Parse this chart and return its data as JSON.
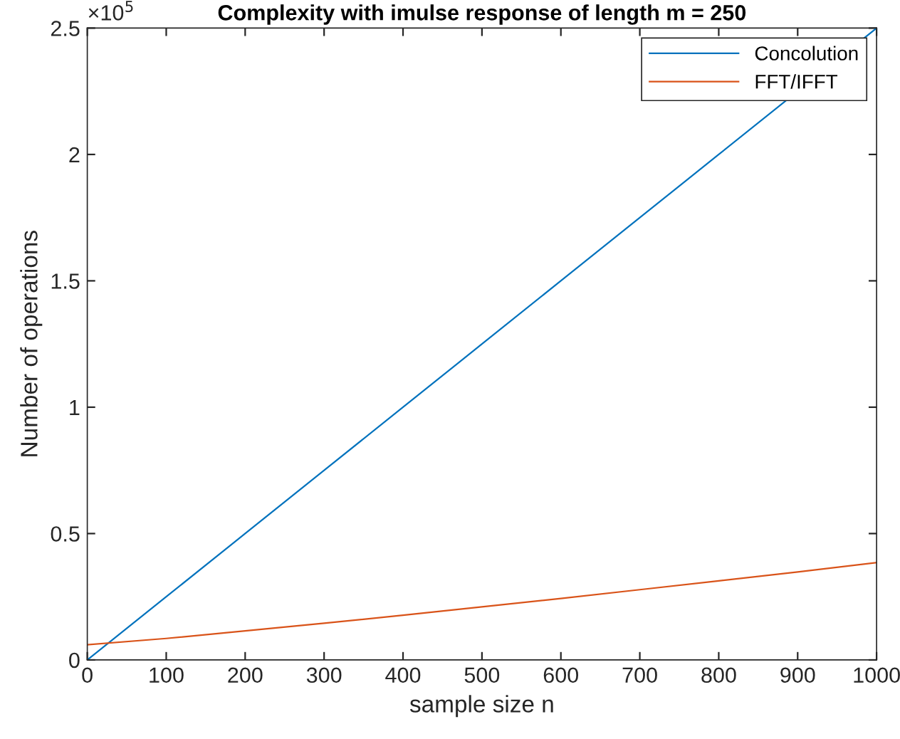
{
  "chart_data": {
    "type": "line",
    "title": "Complexity with imulse response of length m = 250",
    "xlabel": "sample size n",
    "ylabel": "Number of operations",
    "annotations": [
      "×10$^{5}$"
    ],
    "x": [
      0,
      100,
      200,
      300,
      400,
      500,
      600,
      700,
      800,
      900,
      1000
    ],
    "series": [
      {
        "name": "Concolution",
        "color": "#0072bd",
        "x": [
          0,
          100,
          200,
          300,
          400,
          500,
          600,
          700,
          800,
          1000
        ],
        "values": [
          0,
          0.25,
          0.5,
          0.75,
          1.0,
          1.25,
          1.5,
          1.75,
          2.0,
          2.5
        ]
      },
      {
        "name": "FFT/IFFT",
        "color": "#d95319",
        "values": [
          0.06,
          0.085,
          0.115,
          0.145,
          0.177,
          0.21,
          0.243,
          0.278,
          0.313,
          0.348,
          0.385
        ]
      }
    ],
    "xlim": [
      0,
      1000
    ],
    "xticks": [
      0,
      100,
      200,
      300,
      400,
      500,
      600,
      700,
      800,
      900,
      1000
    ],
    "ylim": [
      0,
      2.5
    ],
    "yticks": [
      0,
      0.5,
      1,
      1.5,
      2,
      2.5
    ],
    "legend": "top right",
    "grid": false,
    "marker": "none",
    "line_style": "solid"
  }
}
